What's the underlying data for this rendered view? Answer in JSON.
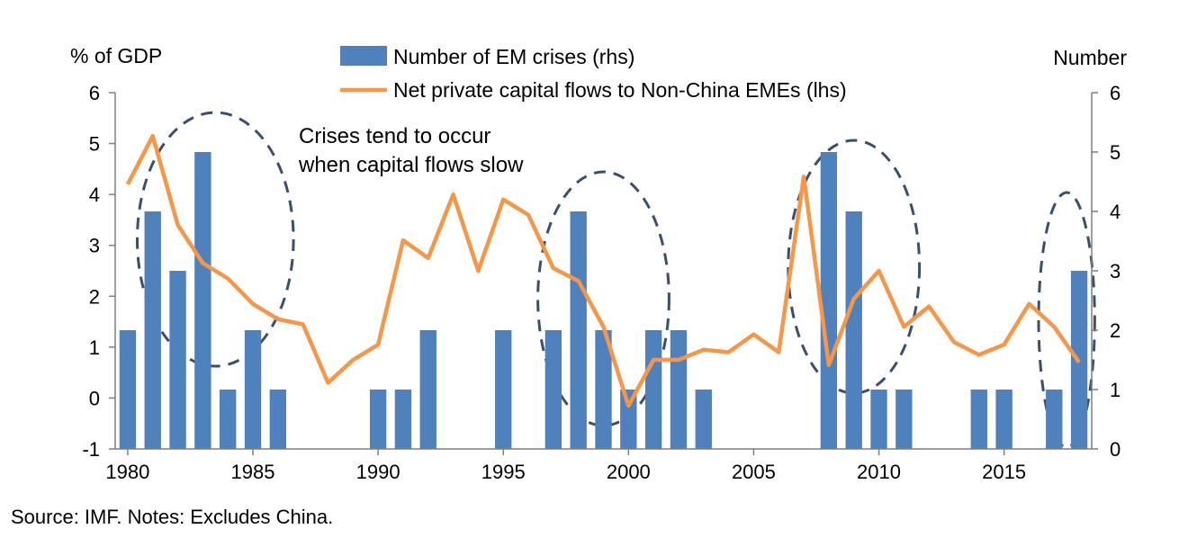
{
  "source_note": "Source: IMF. Notes: Excludes China.",
  "colors": {
    "bars": "#4f81bd",
    "line": "#f79646",
    "ellipse": "#3a4f6e",
    "axis": "#7f7f7f"
  },
  "chart_data": {
    "type": "bar+line",
    "title": "",
    "left_axis_label": "% of GDP",
    "right_axis_label": "Number",
    "annotation": [
      "Crises tend to occur",
      "when capital flows slow"
    ],
    "years": [
      1980,
      1981,
      1982,
      1983,
      1984,
      1985,
      1986,
      1987,
      1988,
      1989,
      1990,
      1991,
      1992,
      1993,
      1994,
      1995,
      1996,
      1997,
      1998,
      1999,
      2000,
      2001,
      2002,
      2003,
      2004,
      2005,
      2006,
      2007,
      2008,
      2009,
      2010,
      2011,
      2012,
      2013,
      2014,
      2015,
      2016,
      2017,
      2018
    ],
    "x_tick_labels": [
      "1980",
      "1985",
      "1990",
      "1995",
      "2000",
      "2005",
      "2010",
      "2015"
    ],
    "left_ylim": [
      -1,
      6
    ],
    "left_yticks": [
      -1,
      0,
      1,
      2,
      3,
      4,
      5,
      6
    ],
    "right_ylim": [
      0,
      6
    ],
    "right_yticks": [
      0,
      1,
      2,
      3,
      4,
      5,
      6
    ],
    "series": [
      {
        "name": "Number of EM crises (rhs)",
        "type": "bar",
        "axis": "right",
        "values": [
          2,
          4,
          3,
          5,
          1,
          2,
          1,
          0,
          0,
          0,
          1,
          1,
          2,
          0,
          0,
          2,
          0,
          2,
          4,
          2,
          1,
          2,
          2,
          1,
          0,
          0,
          0,
          0,
          5,
          4,
          1,
          1,
          0,
          0,
          1,
          1,
          0,
          1,
          3
        ]
      },
      {
        "name": "Net private capital flows to Non-China EMEs (lhs)",
        "type": "line",
        "axis": "left",
        "values": [
          4.2,
          5.15,
          3.4,
          2.65,
          2.35,
          1.85,
          1.55,
          1.45,
          0.3,
          0.75,
          1.05,
          3.1,
          2.75,
          4.0,
          2.5,
          3.9,
          3.6,
          2.55,
          2.3,
          1.4,
          -0.15,
          0.75,
          0.75,
          0.95,
          0.9,
          1.25,
          0.9,
          4.35,
          0.65,
          1.95,
          2.5,
          1.4,
          1.8,
          1.1,
          0.85,
          1.05,
          1.85,
          1.4,
          0.7
        ]
      }
    ],
    "ellipse_highlights": [
      {
        "start_year": 1981,
        "end_year": 1986
      },
      {
        "start_year": 1997,
        "end_year": 2001
      },
      {
        "start_year": 2007,
        "end_year": 2011
      },
      {
        "start_year": 2017,
        "end_year": 2018
      }
    ],
    "grid": false,
    "legend_position": "top-center"
  }
}
